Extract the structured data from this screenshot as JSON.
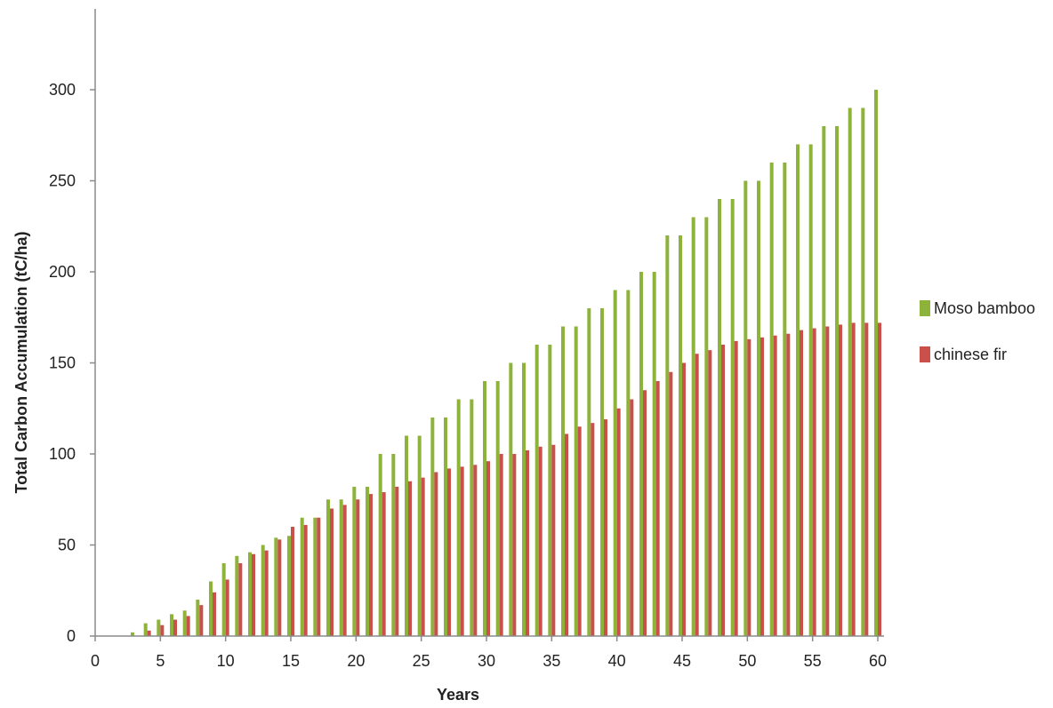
{
  "chart_data": {
    "type": "bar",
    "xlabel": "Years",
    "ylabel": "Total Carbon Accumulation  (tC/ha)",
    "x": [
      0,
      1,
      2,
      3,
      4,
      5,
      6,
      7,
      8,
      9,
      10,
      11,
      12,
      13,
      14,
      15,
      16,
      17,
      18,
      19,
      20,
      21,
      22,
      23,
      24,
      25,
      26,
      27,
      28,
      29,
      30,
      31,
      32,
      33,
      34,
      35,
      36,
      37,
      38,
      39,
      40,
      41,
      42,
      43,
      44,
      45,
      46,
      47,
      48,
      49,
      50,
      51,
      52,
      53,
      54,
      55,
      56,
      57,
      58,
      59,
      60
    ],
    "xticks": [
      "0",
      "5",
      "10",
      "15",
      "20",
      "25",
      "30",
      "35",
      "40",
      "45",
      "50",
      "55",
      "60"
    ],
    "yticks": [
      "0",
      "50",
      "100",
      "150",
      "200",
      "250",
      "300"
    ],
    "ylim": [
      0,
      340
    ],
    "grid": false,
    "legend": "right",
    "series": [
      {
        "name": "Moso bamboo",
        "color": "#8DB33A",
        "values": [
          0,
          0,
          0,
          2,
          7,
          9,
          12,
          14,
          20,
          30,
          40,
          44,
          46,
          50,
          54,
          55,
          65,
          65,
          75,
          75,
          82,
          82,
          100,
          100,
          110,
          110,
          120,
          120,
          130,
          130,
          140,
          140,
          150,
          150,
          160,
          160,
          170,
          170,
          180,
          180,
          190,
          190,
          200,
          200,
          220,
          220,
          230,
          230,
          240,
          240,
          250,
          250,
          260,
          260,
          270,
          270,
          280,
          280,
          290,
          290,
          300
        ]
      },
      {
        "name": "chinese fir",
        "color": "#C9504B",
        "values": [
          0,
          0,
          0,
          0,
          3,
          6,
          9,
          11,
          17,
          24,
          31,
          40,
          45,
          47,
          53,
          60,
          61,
          65,
          70,
          72,
          75,
          78,
          79,
          82,
          85,
          87,
          90,
          92,
          93,
          94,
          96,
          100,
          100,
          102,
          104,
          105,
          111,
          115,
          117,
          119,
          125,
          130,
          135,
          140,
          145,
          150,
          155,
          157,
          160,
          162,
          163,
          164,
          165,
          166,
          168,
          169,
          170,
          171,
          172,
          172,
          172
        ]
      }
    ]
  }
}
